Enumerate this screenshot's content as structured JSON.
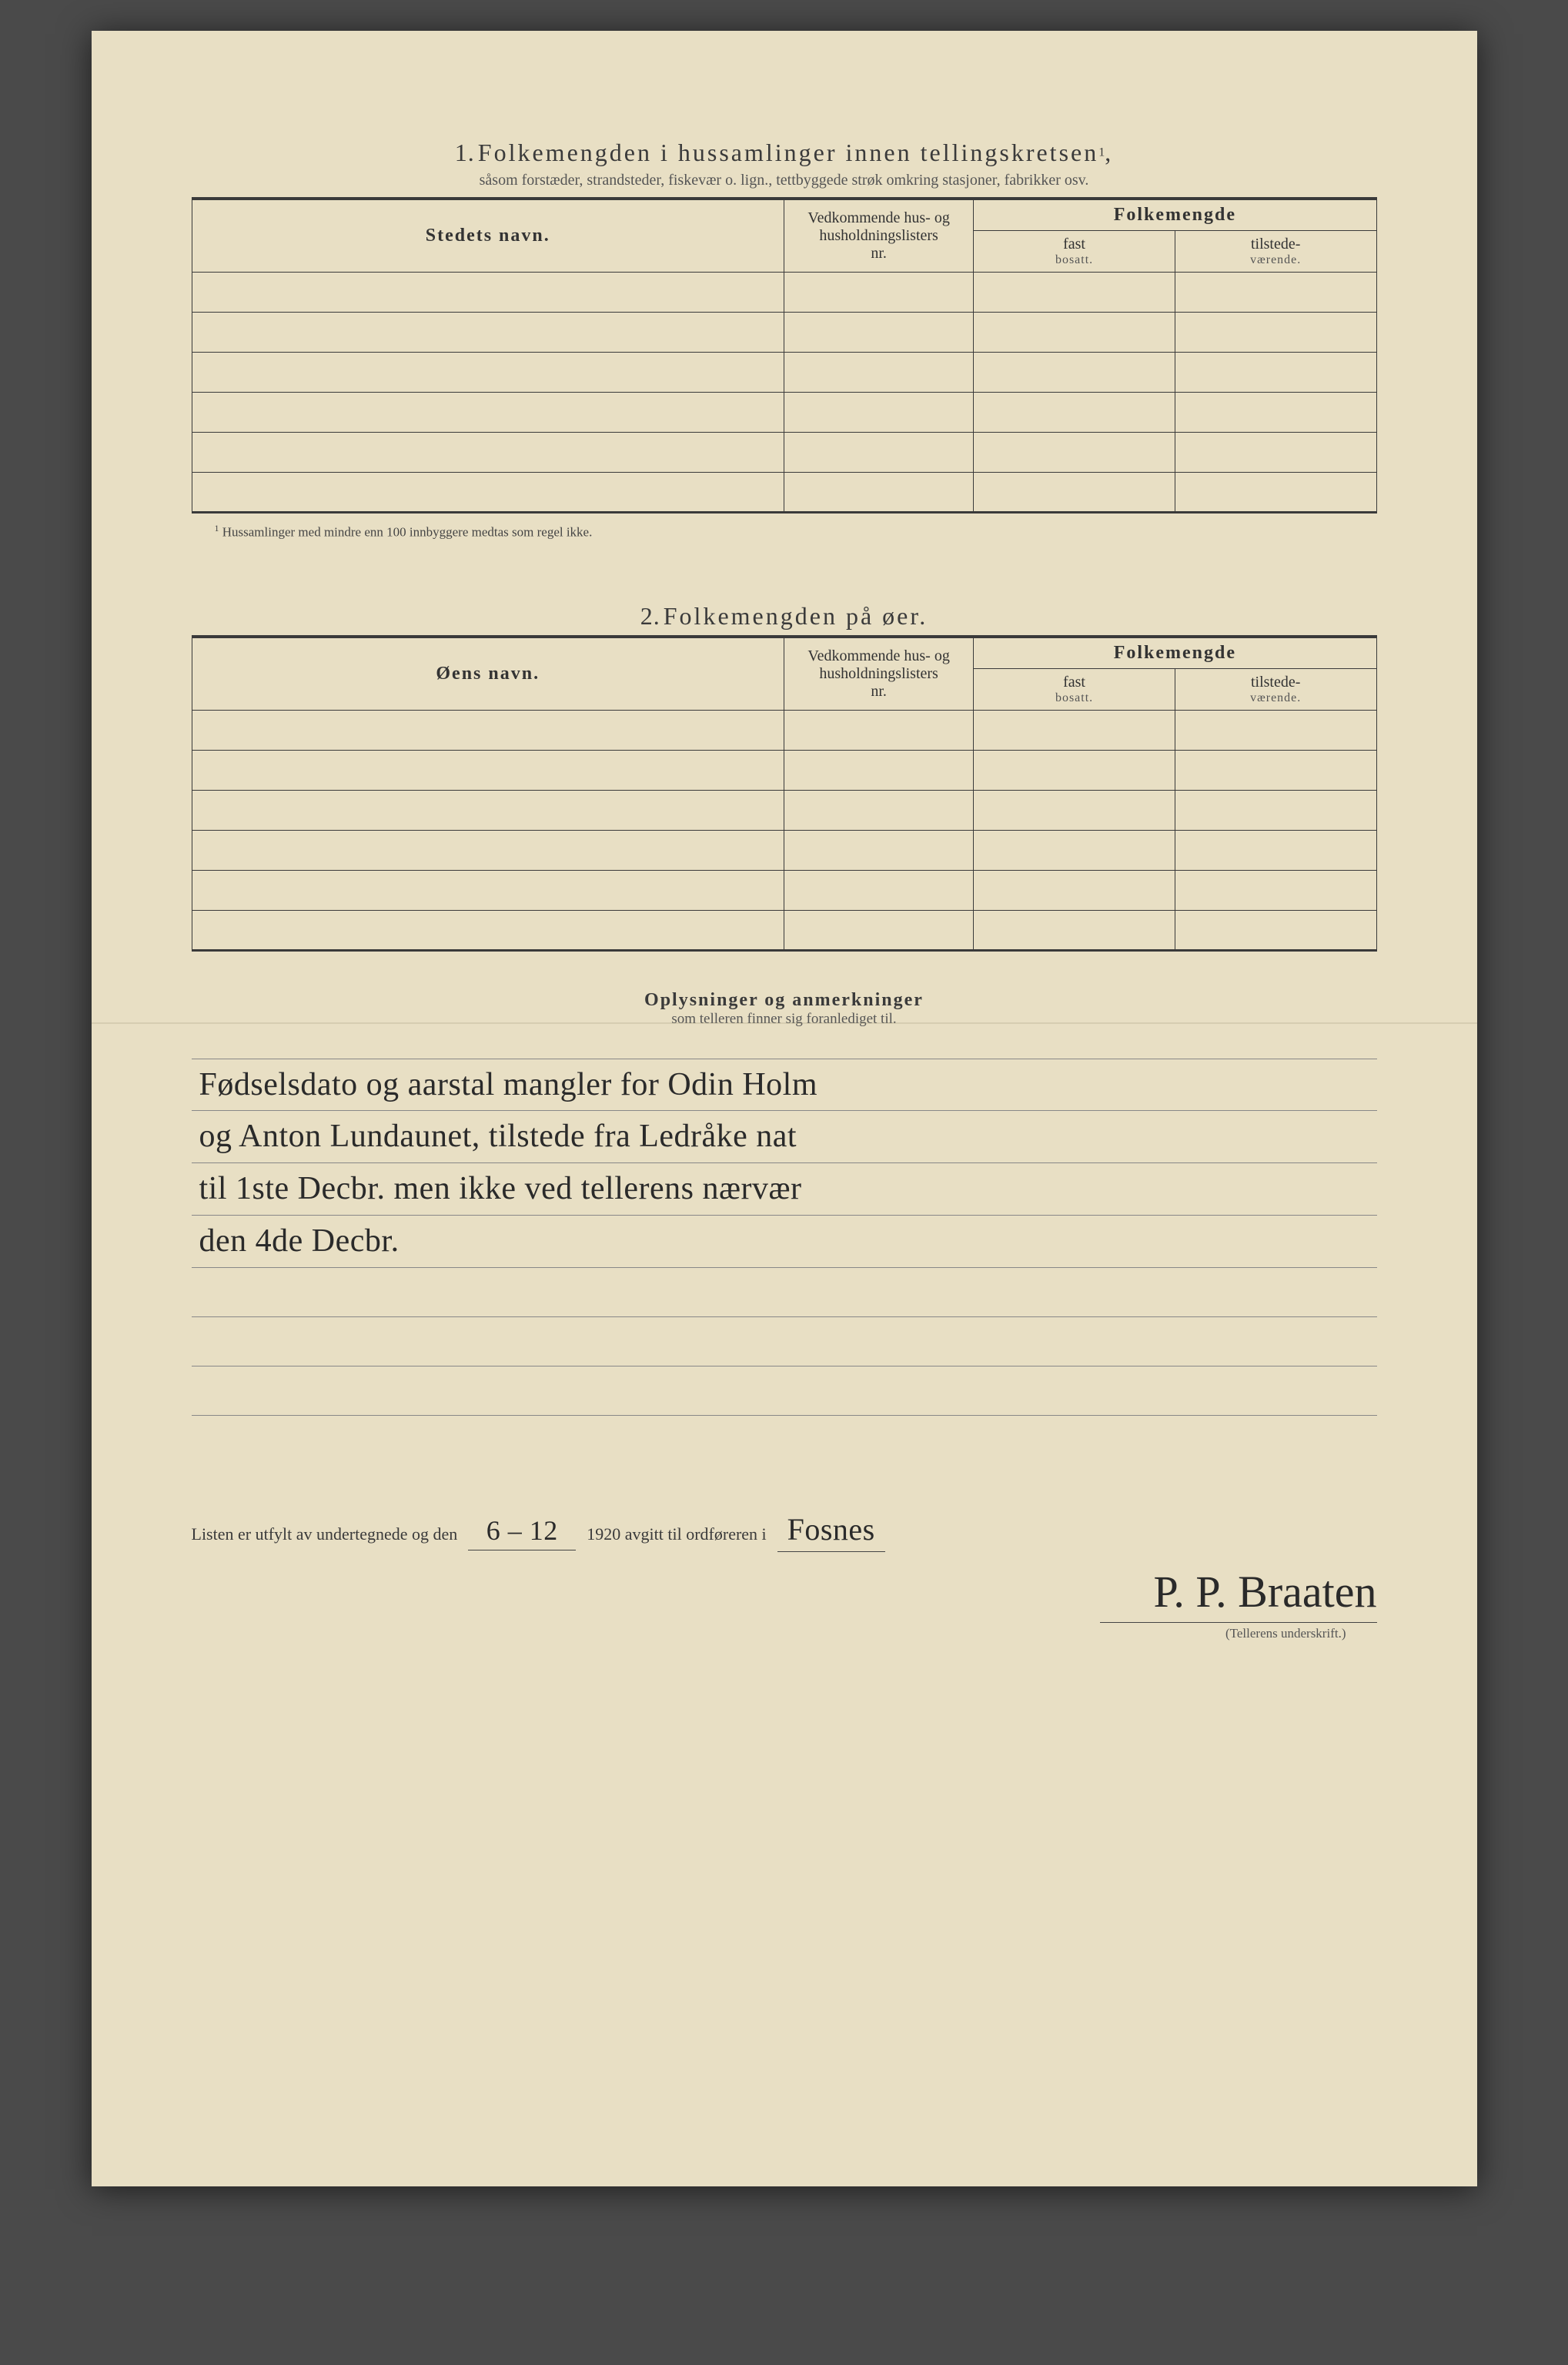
{
  "section1": {
    "number": "1.",
    "title": "Folkemengden i hussamlinger innen tellingskretsen",
    "title_sup": "1",
    "subtitle": "såsom forstæder, strandsteder, fiskevær o. lign., tettbyggede strøk omkring stasjoner, fabrikker osv.",
    "col_name": "Stedets navn.",
    "col_ref_l1": "Vedkommende hus- og",
    "col_ref_l2": "husholdningslisters",
    "col_ref_l3": "nr.",
    "col_pop_header": "Folkemengde",
    "col_pop_a": "fast",
    "col_pop_a_sub": "bosatt.",
    "col_pop_b": "tilstede-",
    "col_pop_b_sub": "værende.",
    "footnote_sup": "1",
    "footnote": "Hussamlinger med mindre enn 100 innbyggere medtas som regel ikke."
  },
  "section2": {
    "number": "2.",
    "title": "Folkemengden på øer.",
    "col_name": "Øens navn.",
    "col_ref_l1": "Vedkommende hus- og",
    "col_ref_l2": "husholdningslisters",
    "col_ref_l3": "nr.",
    "col_pop_header": "Folkemengde",
    "col_pop_a": "fast",
    "col_pop_a_sub": "bosatt.",
    "col_pop_b": "tilstede-",
    "col_pop_b_sub": "værende."
  },
  "remarks": {
    "title": "Oplysninger og anmerkninger",
    "subtitle": "som telleren finner sig foranlediget til.",
    "lines": [
      "Fødselsdato og aarstal mangler for Odin Holm",
      "og Anton Lundaunet, tilstede fra Ledråke nat",
      "til 1ste Decbr. men ikke ved tellerens nærvær",
      "den 4de Decbr.",
      "",
      "",
      ""
    ]
  },
  "signoff": {
    "prefix": "Listen er utfylt av undertegnede og den",
    "date": "6 – 12",
    "mid": "1920 avgitt til ordføreren i",
    "place": "Fosnes",
    "signature": "P. P. Braaten",
    "caption": "(Tellerens underskrift.)"
  }
}
